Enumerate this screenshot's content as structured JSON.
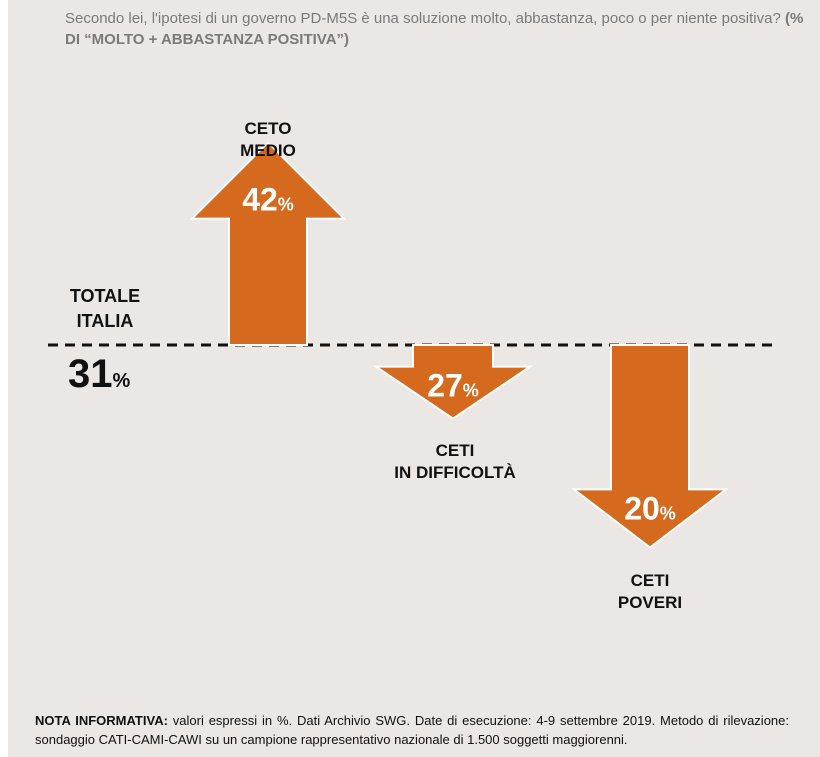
{
  "question": {
    "text": "Secondo lei, l'ipotesi di un governo PD-M5S è una soluzione molto, abbastanza, poco o per niente positiva?",
    "strong": "(% DI “MOLTO + ABBASTANZA POSITIVA”)"
  },
  "chart_data": {
    "type": "bar",
    "baseline": {
      "label_line1": "TOTALE",
      "label_line2": "ITALIA",
      "value": 31,
      "unit": "%"
    },
    "categories": [
      "CETO MEDIO",
      "CETI IN DIFFICOLTÀ",
      "CETI POVERI"
    ],
    "series": [
      {
        "values": [
          42,
          27,
          20
        ]
      }
    ],
    "unit": "%",
    "arrow_color": "#d5691e",
    "labels": [
      {
        "line1": "CETO",
        "line2": "MEDIO"
      },
      {
        "line1": "CETI",
        "line2": "IN DIFFICOLTÀ"
      },
      {
        "line1": "CETI",
        "line2": "POVERI"
      }
    ]
  },
  "note": {
    "strong": "NOTA INFORMATIVA:",
    "text": " valori espressi in %. Dati Archivio SWG. Date di esecuzione: 4-9 settembre 2019. Metodo di rilevazione: sondaggio CATI-CAMI-CAWI su un campione rappresentativo nazionale di 1.500 soggetti maggiorenni."
  }
}
